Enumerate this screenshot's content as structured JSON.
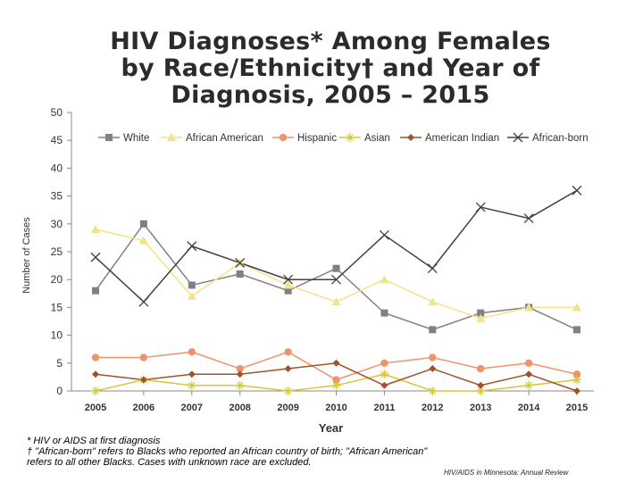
{
  "title_lines": [
    "HIV Diagnoses* Among Females",
    "by Race/Ethnicity† and Year of",
    "Diagnosis, 2005 – 2015"
  ],
  "footnotes": {
    "line1": "* HIV or AIDS at first diagnosis",
    "line2": "† \"African-born\" refers to Blacks who reported an African country of birth; \"African American\"",
    "line3": "refers to all other Blacks.  Cases with unknown race are excluded."
  },
  "source": "HIV/AIDS in Minnesota: Annual Review",
  "chart_data": {
    "type": "line",
    "xlabel": "Year",
    "ylabel": "Number of Cases",
    "ylim": [
      0,
      50
    ],
    "yticks": [
      "0",
      "5",
      "10",
      "15",
      "20",
      "25",
      "30",
      "35",
      "40",
      "45",
      "50"
    ],
    "categories": [
      "2005",
      "2006",
      "2007",
      "2008",
      "2009",
      "2010",
      "2011",
      "2012",
      "2013",
      "2014",
      "2015"
    ],
    "legend_position": "top",
    "series": [
      {
        "name": "White",
        "color": "#808080",
        "marker": "square",
        "values": [
          18,
          30,
          19,
          21,
          18,
          22,
          14,
          11,
          14,
          15,
          11
        ]
      },
      {
        "name": "African American",
        "color": "#f2e28a",
        "marker": "triangle",
        "values": [
          29,
          27,
          17,
          23,
          19,
          16,
          20,
          16,
          13,
          15,
          15
        ]
      },
      {
        "name": "Hispanic",
        "color": "#f0936a",
        "marker": "circle",
        "values": [
          6,
          6,
          7,
          4,
          7,
          2,
          5,
          6,
          4,
          5,
          3
        ]
      },
      {
        "name": "Asian",
        "color": "#d4c83a",
        "marker": "star",
        "values": [
          0,
          2,
          1,
          1,
          0,
          1,
          3,
          0,
          0,
          1,
          2
        ]
      },
      {
        "name": "American Indian",
        "color": "#a0522d",
        "marker": "diamond",
        "values": [
          3,
          2,
          3,
          3,
          4,
          5,
          1,
          4,
          1,
          3,
          0
        ]
      },
      {
        "name": "African-born",
        "color": "#404040",
        "marker": "x",
        "values": [
          24,
          16,
          26,
          23,
          20,
          20,
          28,
          22,
          33,
          31,
          36
        ]
      }
    ]
  }
}
